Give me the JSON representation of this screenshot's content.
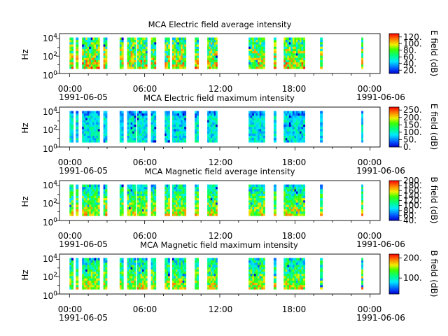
{
  "chart_data": [
    {
      "type": "heatmap",
      "title": "MCA  Electric field average intensity",
      "ylabel": "Hz",
      "colorbar_label": "E field (dB)",
      "colorbar_range": [
        10,
        130
      ],
      "colorbar_ticks": [
        "20.",
        "40.",
        "60.",
        "80.",
        "100.",
        "120."
      ],
      "colorbar_tick_values": [
        20,
        40,
        60,
        80,
        100,
        120
      ],
      "y_tick_exponents": [
        "0",
        "2",
        "4"
      ],
      "intensity_bias": 0.45,
      "intensity_spread": 0.28
    },
    {
      "type": "heatmap",
      "title": "MCA  Electric field maximum intensity",
      "ylabel": "Hz",
      "colorbar_label": "E field (dB)",
      "colorbar_range": [
        0,
        270
      ],
      "colorbar_ticks": [
        "0.",
        "50.",
        "100.",
        "150.",
        "200.",
        "250."
      ],
      "colorbar_tick_values": [
        0,
        50,
        100,
        150,
        200,
        250
      ],
      "y_tick_exponents": [
        "0",
        "2",
        "4"
      ],
      "intensity_bias": 0.33,
      "intensity_spread": 0.14
    },
    {
      "type": "heatmap",
      "title": "MCA  Magnetic field average intensity",
      "ylabel": "Hz",
      "colorbar_label": "B field (dB)",
      "colorbar_range": [
        40,
        200
      ],
      "colorbar_ticks": [
        "40.",
        "60.",
        "80.",
        "100.",
        "120.",
        "140.",
        "160.",
        "180.",
        "200."
      ],
      "colorbar_tick_values": [
        40,
        60,
        80,
        100,
        120,
        140,
        160,
        180,
        200
      ],
      "y_tick_exponents": [
        "0",
        "2",
        "4"
      ],
      "intensity_bias": 0.52,
      "intensity_spread": 0.22
    },
    {
      "type": "heatmap",
      "title": "MCA  Magnetic field maximum intensity",
      "ylabel": "Hz",
      "colorbar_label": "B field (dB)",
      "colorbar_range": [
        20,
        220
      ],
      "colorbar_ticks": [
        "100.",
        "200."
      ],
      "colorbar_tick_values": [
        100,
        200
      ],
      "y_tick_exponents": [
        "0",
        "2",
        "4"
      ],
      "intensity_bias": 0.52,
      "intensity_spread": 0.22
    }
  ],
  "x_axis": {
    "tick_labels": [
      "00:00",
      "06:00",
      "12:00",
      "18:00",
      "00:00"
    ],
    "tick_hours": [
      0,
      6,
      12,
      18,
      24
    ],
    "date_left": "1991-06-05",
    "date_right": "1991-06-06",
    "range_hours": [
      -0.8,
      24.8
    ]
  },
  "y_axis": {
    "log_base": "10",
    "range_exponent": [
      0,
      4.6
    ]
  },
  "data_intervals_hours": [
    [
      0.0,
      0.3
    ],
    [
      0.5,
      0.7
    ],
    [
      1.0,
      2.4
    ],
    [
      2.7,
      3.0
    ],
    [
      4.0,
      4.3
    ],
    [
      4.6,
      5.3
    ],
    [
      5.4,
      6.2
    ],
    [
      6.5,
      6.9
    ],
    [
      7.6,
      8.0
    ],
    [
      8.2,
      9.3
    ],
    [
      10.0,
      10.3
    ],
    [
      11.0,
      11.8
    ],
    [
      14.3,
      15.6
    ],
    [
      16.3,
      16.5
    ],
    [
      17.1,
      18.8
    ],
    [
      20.0,
      20.2
    ],
    [
      23.3,
      23.4
    ]
  ]
}
